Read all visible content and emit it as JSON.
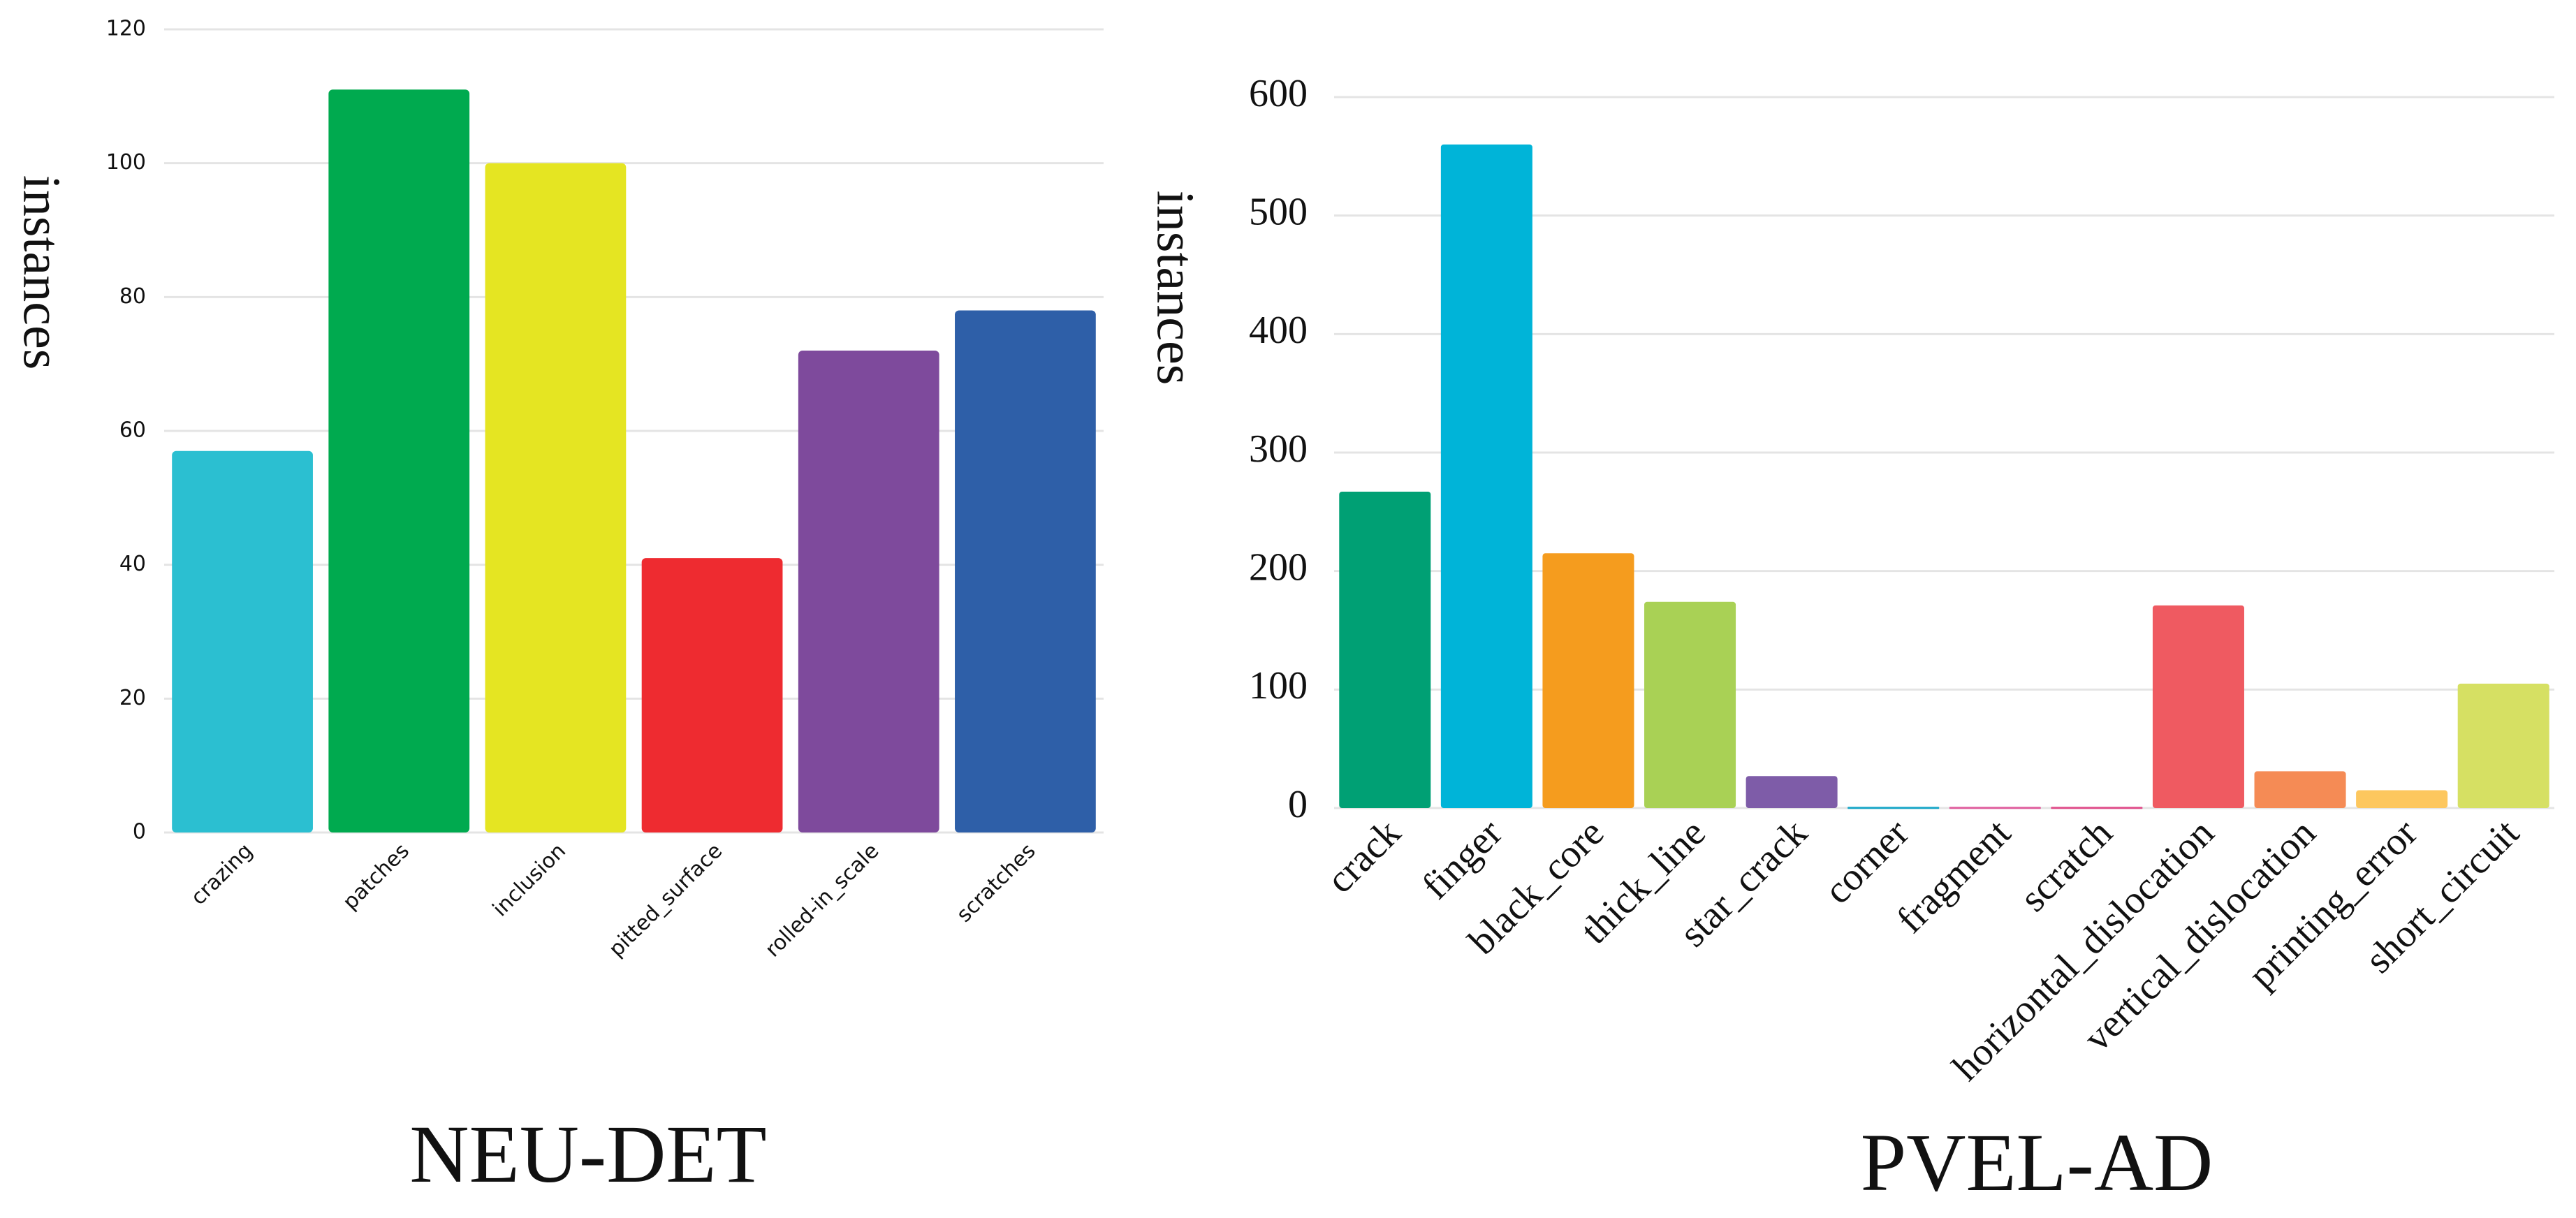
{
  "chart_data": [
    {
      "type": "bar",
      "title": "NEU-DET",
      "y_label": "instances",
      "categories": [
        "crazing",
        "patches",
        "inclusion",
        "pitted_surface",
        "rolled-in_scale",
        "scratches"
      ],
      "values": [
        57,
        111,
        100,
        41,
        72,
        78
      ],
      "colors": [
        "#2bbfd1",
        "#00aa4f",
        "#e5e522",
        "#ee2b30",
        "#7e4a9c",
        "#2e5fa8"
      ],
      "ylim": [
        0,
        120
      ],
      "yticks": [
        0,
        20,
        40,
        60,
        80,
        100,
        120
      ],
      "grid": true
    },
    {
      "type": "bar",
      "title": "PVEL-AD",
      "y_label": "instances",
      "categories": [
        "crack",
        "finger",
        "black_core",
        "thick_line",
        "star_crack",
        "corner",
        "fragment",
        "scratch",
        "horizontal_dislocation",
        "vertical_dislocation",
        "printing_error",
        "short_circuit"
      ],
      "values": [
        267,
        560,
        215,
        174,
        27,
        1,
        1,
        1,
        171,
        31,
        15,
        105
      ],
      "colors": [
        "#00a074",
        "#00b4d8",
        "#f59c1e",
        "#a9d155",
        "#7e5ca8",
        "#1aa7c8",
        "#e05f9e",
        "#e04e8a",
        "#ef5a61",
        "#f58b55",
        "#fdc75e",
        "#d6e063"
      ],
      "ylim": [
        0,
        600
      ],
      "yticks": [
        0,
        100,
        200,
        300,
        400,
        500,
        600
      ],
      "grid": true
    }
  ]
}
